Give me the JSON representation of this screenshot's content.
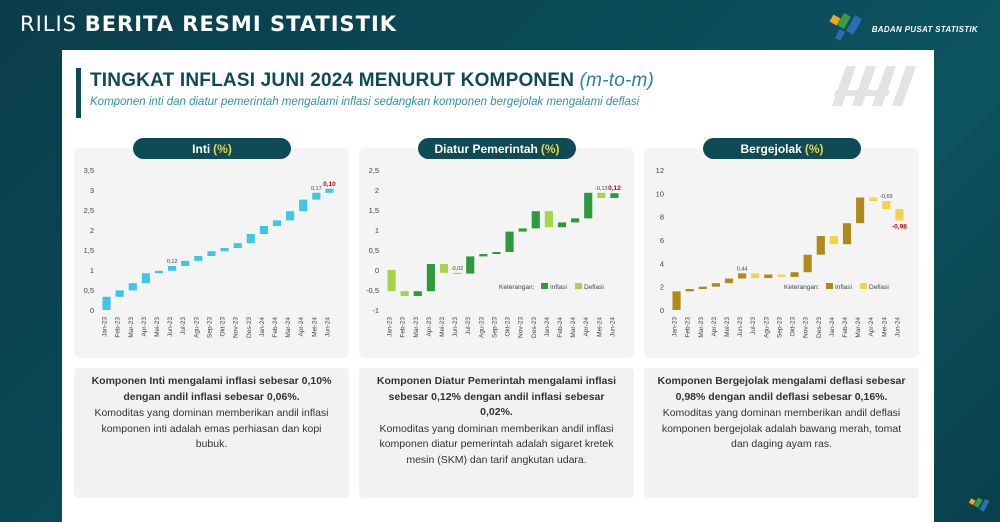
{
  "header": {
    "prefix": "RILIS",
    "main": "BERITA RESMI STATISTIK",
    "logo_text": "BADAN PUSAT STATISTIK"
  },
  "slide": {
    "title": "TINGKAT INFLASI JUNI 2024 MENURUT KOMPONEN",
    "title_paren": "(m-to-m)",
    "subtitle": "Komponen inti dan diatur pemerintah mengalami inflasi sedangkan komponen bergejolak mengalami deflasi"
  },
  "colors": {
    "inti": "#3cc8e4",
    "inflasi_ap": "#2e9a3e",
    "deflasi_ap": "#a6d44a",
    "inflasi_vf": "#b0891a",
    "deflasi_vf": "#f2d34a",
    "dark_teal": "#0f4b57"
  },
  "panels": [
    {
      "label": "Inti",
      "pct": "(%)"
    },
    {
      "label": "Diatur Pemerintah",
      "pct": "(%)"
    },
    {
      "label": "Bergejolak",
      "pct": "(%)"
    }
  ],
  "texts": [
    {
      "bold": "Komponen Inti mengalami inflasi sebesar 0,10% dengan andil inflasi sebesar 0,06%.",
      "normal": "Komoditas yang dominan memberikan andil inflasi komponen inti adalah emas perhiasan dan kopi bubuk."
    },
    {
      "bold": "Komponen Diatur Pemerintah mengalami inflasi sebesar 0,12% dengan andil inflasi sebesar 0,02%.",
      "normal": "Komoditas yang dominan memberikan andil inflasi komponen diatur pemerintah adalah sigaret kretek mesin (SKM) dan tarif angkutan udara."
    },
    {
      "bold": "Komponen Bergejolak mengalami deflasi sebesar 0,98% dengan andil deflasi sebesar 0,16%.",
      "normal": "Komoditas yang dominan memberikan andil deflasi komponen bergejolak adalah bawang merah, tomat dan daging ayam ras."
    }
  ],
  "chart_data": [
    {
      "type": "bar",
      "subtype": "waterfall",
      "title": "Inti (%)",
      "categories": [
        "Jan-23",
        "Feb-23",
        "Mar-23",
        "Apr-23",
        "Mei-23",
        "Jun-23",
        "Jul-23",
        "Agu-23",
        "Sep-23",
        "Okt-23",
        "Nov-23",
        "Des-23",
        "Jan-24",
        "Feb-24",
        "Mar-24",
        "Apr-24",
        "Mei-24",
        "Jun-24"
      ],
      "values": [
        0.33,
        0.16,
        0.18,
        0.25,
        0.06,
        0.12,
        0.13,
        0.12,
        0.12,
        0.08,
        0.12,
        0.23,
        0.2,
        0.14,
        0.23,
        0.29,
        0.17,
        0.1
      ],
      "cumulative_end": [
        0.33,
        0.49,
        0.67,
        0.92,
        0.98,
        1.1,
        1.23,
        1.35,
        1.47,
        1.55,
        1.67,
        1.9,
        2.1,
        2.24,
        2.47,
        2.76,
        2.93,
        3.03
      ],
      "data_labels": {
        "Jun-23": "0,12",
        "Mei-24": "0,17",
        "Jun-24": "0,10"
      },
      "yticks": [
        "0",
        "0,5",
        "1",
        "1,5",
        "2",
        "2,5",
        "3",
        "3,5"
      ],
      "ylim": [
        0,
        3.5
      ]
    },
    {
      "type": "bar",
      "subtype": "waterfall",
      "title": "Diatur Pemerintah (%)",
      "categories": [
        "Jan-23",
        "Feb-23",
        "Mar-23",
        "Apr-23",
        "Mei-23",
        "Jun-23",
        "Jul-23",
        "Agu-23",
        "Sep-23",
        "Okt-23",
        "Nov-23",
        "Des-23",
        "Jan-24",
        "Feb-24",
        "Mar-24",
        "Apr-24",
        "Mei-24",
        "Jun-24"
      ],
      "values": [
        -0.53,
        -0.12,
        0.12,
        0.68,
        -0.22,
        -0.02,
        0.43,
        0.06,
        0.05,
        0.51,
        0.08,
        0.43,
        -0.4,
        0.12,
        0.1,
        0.64,
        -0.13,
        0.12
      ],
      "cumulative_end": [
        -0.53,
        -0.65,
        -0.53,
        0.15,
        -0.07,
        -0.09,
        0.34,
        0.4,
        0.45,
        0.96,
        1.04,
        1.47,
        1.07,
        1.19,
        1.29,
        1.93,
        1.8,
        1.92
      ],
      "data_labels": {
        "Jun-23": "-0,02",
        "Mei-24": "-0,13",
        "Jun-24": "0,12"
      },
      "legend": {
        "title": "Keterangan:",
        "items": [
          "Inflasi",
          "Deflasi"
        ]
      },
      "yticks": [
        "-1",
        "-0,5",
        "0",
        "0,5",
        "1",
        "1,5",
        "2",
        "2,5"
      ],
      "ylim": [
        -1,
        2.5
      ]
    },
    {
      "type": "bar",
      "subtype": "waterfall",
      "title": "Bergejolak (%)",
      "categories": [
        "Jan-23",
        "Feb-23",
        "Mar-23",
        "Apr-23",
        "Mei-23",
        "Jun-23",
        "Jul-23",
        "Agu-23",
        "Sep-23",
        "Okt-23",
        "Nov-23",
        "Des-23",
        "Jan-24",
        "Feb-24",
        "Mar-24",
        "Apr-24",
        "Mei-24",
        "Jun-24"
      ],
      "values": [
        1.6,
        0.2,
        0.2,
        0.3,
        0.4,
        0.44,
        -0.4,
        0.3,
        -0.2,
        0.4,
        1.5,
        1.6,
        -0.7,
        1.8,
        2.2,
        -0.3,
        -0.69,
        -0.98
      ],
      "cumulative_end": [
        1.6,
        1.8,
        2.0,
        2.3,
        2.7,
        3.14,
        2.74,
        3.04,
        2.84,
        3.24,
        4.74,
        6.34,
        5.64,
        7.44,
        9.64,
        9.34,
        8.65,
        7.67
      ],
      "data_labels": {
        "Jun-23": "0,44",
        "Mei-24": "-0,69",
        "Jun-24": "-0,98"
      },
      "legend": {
        "title": "Keterangan:",
        "items": [
          "Inflasi",
          "Deflasi"
        ]
      },
      "yticks": [
        "0",
        "2",
        "4",
        "6",
        "8",
        "10",
        "12"
      ],
      "ylim": [
        0,
        12
      ]
    }
  ]
}
